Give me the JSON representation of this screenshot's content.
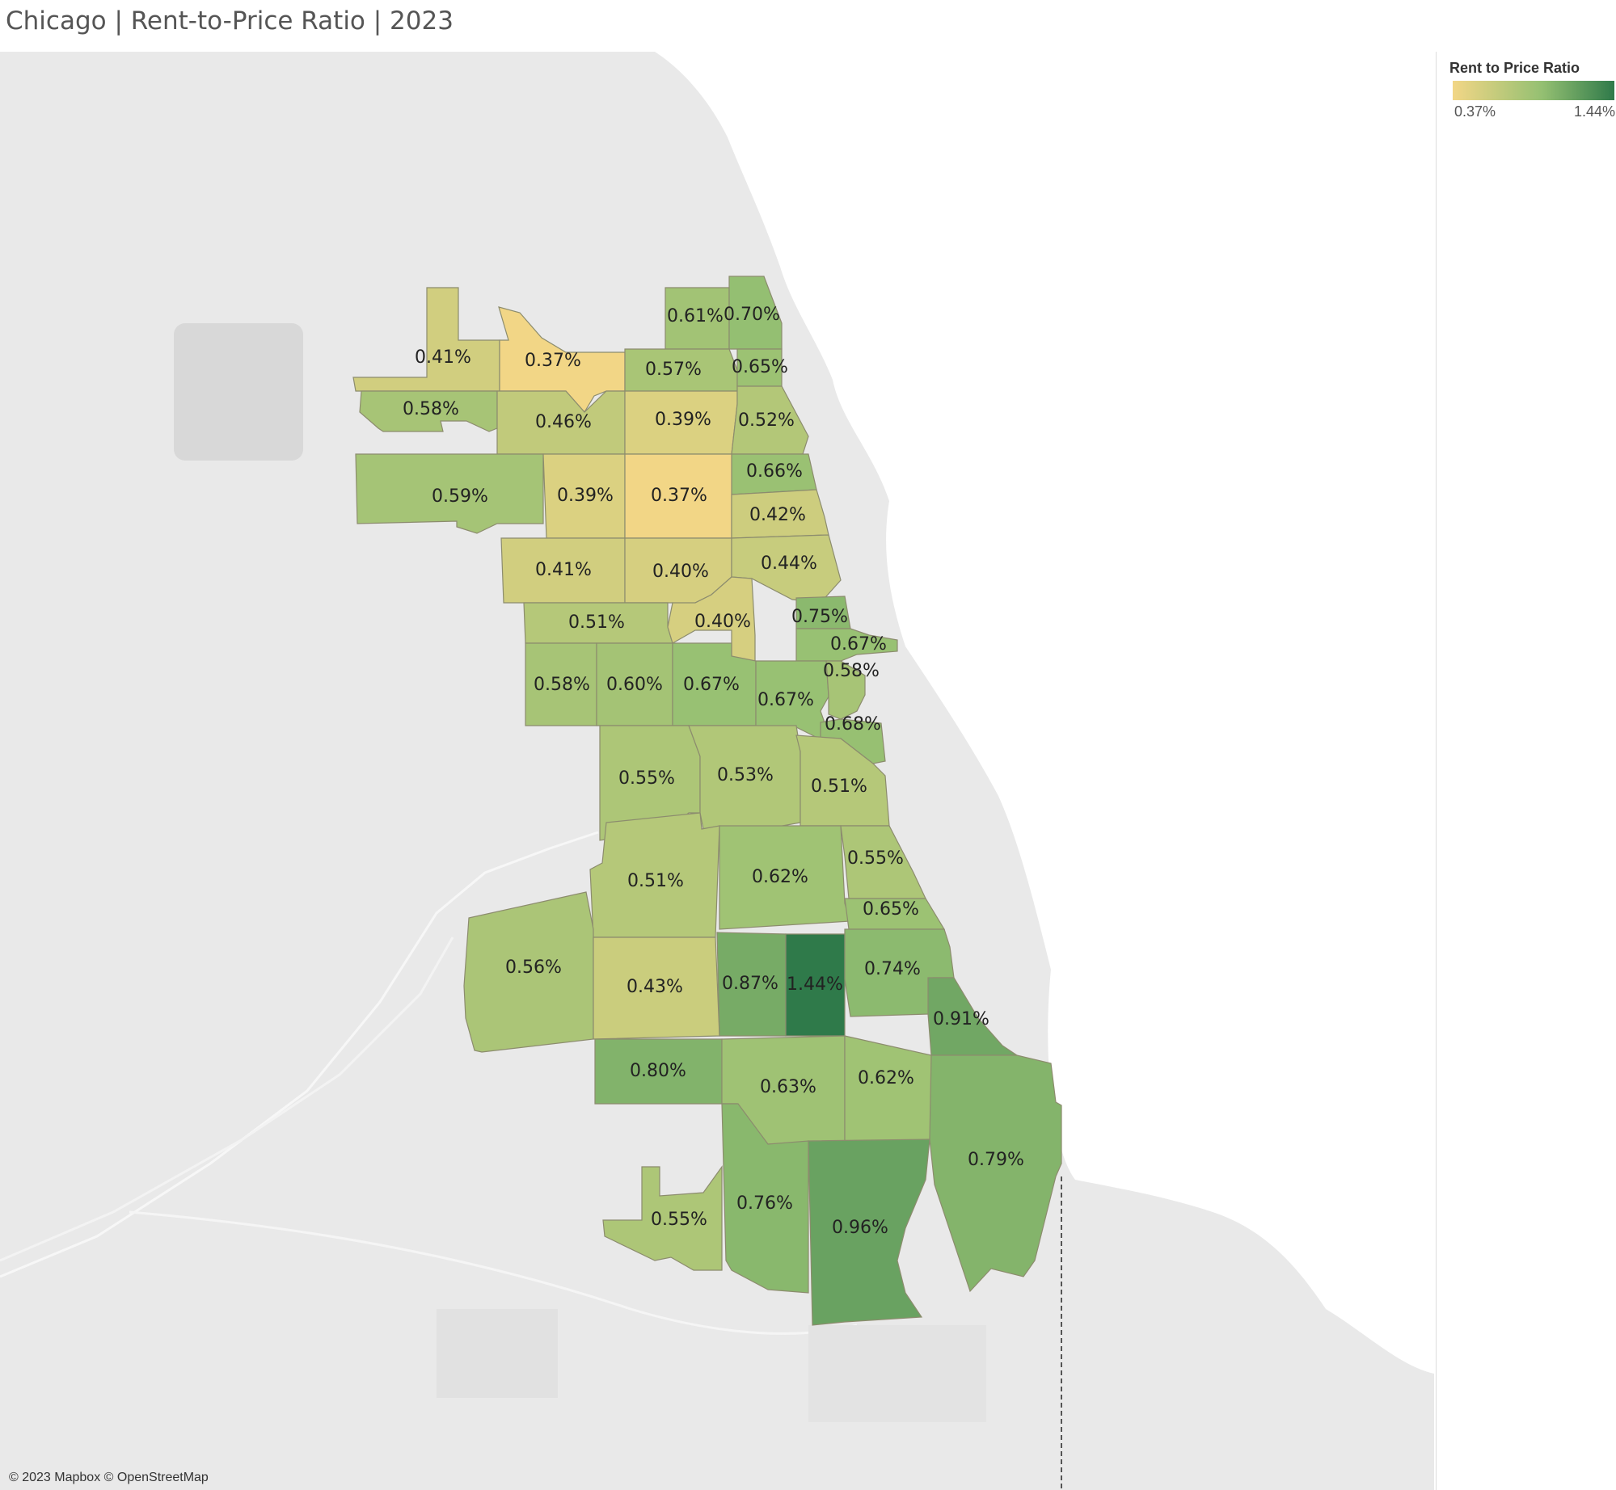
{
  "title": "Chicago | Rent-to-Price Ratio | 2023",
  "attribution": "© 2023 Mapbox © OpenStreetMap",
  "legend": {
    "title": "Rent to Price Ratio",
    "min_label": "0.37%",
    "max_label": "1.44%",
    "min_value": 0.37,
    "max_value": 1.44,
    "color_low": "#f2d686",
    "color_mid": "#95c072",
    "color_high": "#2f7a4a"
  },
  "colors": {
    "map_background": "#e9e9e9",
    "lake": "#ffffff",
    "region_border": "#8c8c6e"
  },
  "regions": [
    {
      "label": "0.61%",
      "value": 0.61
    },
    {
      "label": "0.70%",
      "value": 0.7
    },
    {
      "label": "0.41%",
      "value": 0.41
    },
    {
      "label": "0.37%",
      "value": 0.37
    },
    {
      "label": "0.57%",
      "value": 0.57
    },
    {
      "label": "0.65%",
      "value": 0.65
    },
    {
      "label": "0.58%",
      "value": 0.58
    },
    {
      "label": "0.46%",
      "value": 0.46
    },
    {
      "label": "0.39%",
      "value": 0.39
    },
    {
      "label": "0.52%",
      "value": 0.52
    },
    {
      "label": "0.66%",
      "value": 0.66
    },
    {
      "label": "0.59%",
      "value": 0.59
    },
    {
      "label": "0.39%",
      "value": 0.39
    },
    {
      "label": "0.37%",
      "value": 0.37
    },
    {
      "label": "0.42%",
      "value": 0.42
    },
    {
      "label": "0.41%",
      "value": 0.41
    },
    {
      "label": "0.40%",
      "value": 0.4
    },
    {
      "label": "0.44%",
      "value": 0.44
    },
    {
      "label": "0.51%",
      "value": 0.51
    },
    {
      "label": "0.40%",
      "value": 0.4
    },
    {
      "label": "0.75%",
      "value": 0.75
    },
    {
      "label": "0.67%",
      "value": 0.67
    },
    {
      "label": "0.58%",
      "value": 0.58
    },
    {
      "label": "0.60%",
      "value": 0.6
    },
    {
      "label": "0.67%",
      "value": 0.67
    },
    {
      "label": "0.67%",
      "value": 0.67
    },
    {
      "label": "0.58%",
      "value": 0.58
    },
    {
      "label": "0.68%",
      "value": 0.68
    },
    {
      "label": "0.55%",
      "value": 0.55
    },
    {
      "label": "0.53%",
      "value": 0.53
    },
    {
      "label": "0.51%",
      "value": 0.51
    },
    {
      "label": "0.51%",
      "value": 0.51
    },
    {
      "label": "0.62%",
      "value": 0.62
    },
    {
      "label": "0.55%",
      "value": 0.55
    },
    {
      "label": "0.65%",
      "value": 0.65
    },
    {
      "label": "0.56%",
      "value": 0.56
    },
    {
      "label": "0.43%",
      "value": 0.43
    },
    {
      "label": "0.87%",
      "value": 0.87
    },
    {
      "label": "1.44%",
      "value": 1.44
    },
    {
      "label": "0.74%",
      "value": 0.74
    },
    {
      "label": "0.91%",
      "value": 0.91
    },
    {
      "label": "0.80%",
      "value": 0.8
    },
    {
      "label": "0.63%",
      "value": 0.63
    },
    {
      "label": "0.62%",
      "value": 0.62
    },
    {
      "label": "0.79%",
      "value": 0.79
    },
    {
      "label": "0.55%",
      "value": 0.55
    },
    {
      "label": "0.76%",
      "value": 0.76
    },
    {
      "label": "0.96%",
      "value": 0.96
    }
  ]
}
